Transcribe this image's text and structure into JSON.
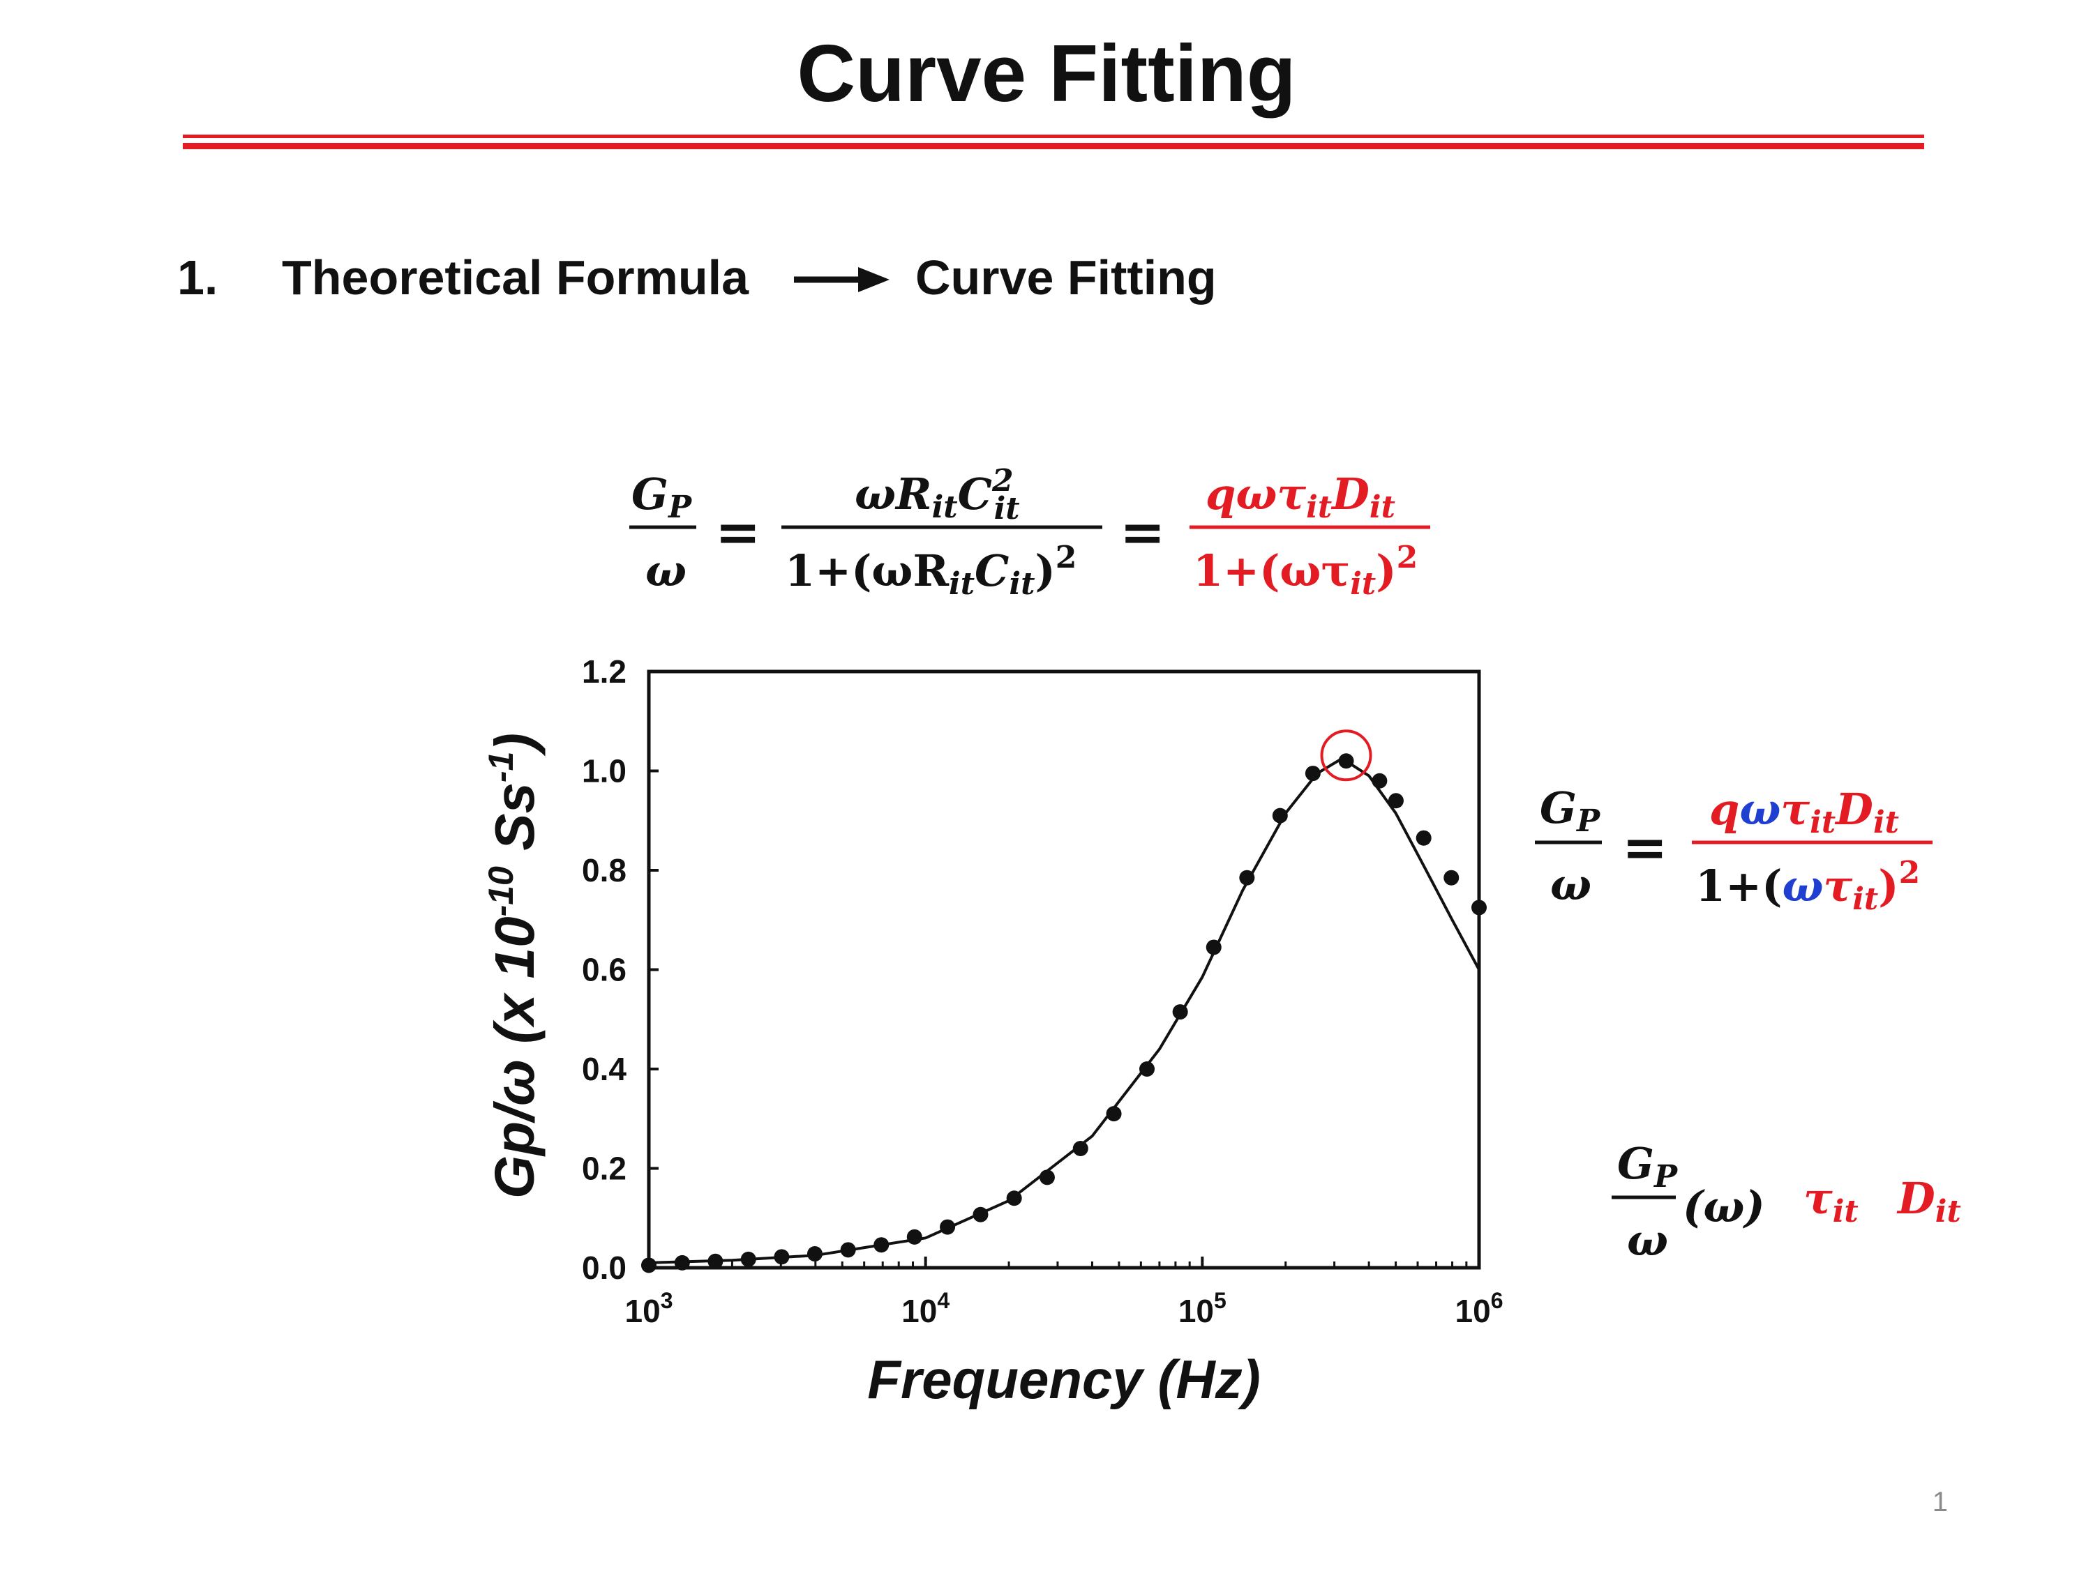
{
  "title": "Curve Fitting",
  "heading": {
    "number": "1.",
    "left": "Theoretical Formula",
    "right": "Curve Fitting"
  },
  "page_number": "1",
  "colors": {
    "accent": "#e31b23",
    "omega_highlight": "#1f3fd1",
    "text": "#111111"
  },
  "chart_data": {
    "type": "scatter",
    "xlabel": "Frequency (Hz)",
    "ylabel": "Gp/ω (x 10-10 Ss-1)",
    "xscale": "log",
    "xlim": [
      1000,
      1000000
    ],
    "ylim": [
      0,
      1.2
    ],
    "x_ticks": [
      "10^3",
      "10^4",
      "10^5",
      "10^6"
    ],
    "y_ticks": [
      "0.0",
      "0.2",
      "0.4",
      "0.6",
      "0.8",
      "1.0",
      "1.2"
    ],
    "grid": false,
    "series": [
      {
        "kind": "scatter",
        "x": [
          1000,
          1320,
          1740,
          2290,
          3020,
          3980,
          5250,
          6920,
          9120,
          12000,
          15800,
          20900,
          27500,
          36300,
          47900,
          63100,
          83200,
          110000,
          145000,
          191000,
          251000,
          331000,
          437000,
          501000,
          631000,
          794000,
          1000000
        ],
        "y": [
          0.005,
          0.01,
          0.013,
          0.017,
          0.022,
          0.028,
          0.036,
          0.046,
          0.062,
          0.082,
          0.107,
          0.14,
          0.182,
          0.24,
          0.31,
          0.4,
          0.515,
          0.645,
          0.785,
          0.91,
          0.995,
          1.02,
          0.98,
          0.94,
          0.865,
          0.785,
          0.725
        ]
      },
      {
        "kind": "line",
        "x": [
          1000,
          2000,
          4000,
          10000,
          20000,
          40000,
          70000,
          100000,
          140000,
          200000,
          260000,
          320000,
          400000,
          500000,
          630000,
          800000,
          1000000
        ],
        "y": [
          0.01,
          0.015,
          0.025,
          0.06,
          0.135,
          0.265,
          0.44,
          0.585,
          0.76,
          0.915,
          0.995,
          1.025,
          0.99,
          0.915,
          0.81,
          0.7,
          0.6
        ]
      }
    ],
    "highlight_point": {
      "x": 331000,
      "y": 1.02
    }
  },
  "formulas": {
    "main": {
      "lhs_num": "G",
      "lhs_num_sub": "P",
      "lhs_den": "ω",
      "eq": "=",
      "mid_num_a": "ωR",
      "mid_num_sub_a": "it",
      "mid_num_b": "C",
      "mid_num_sup_b": "2",
      "mid_num_sub_b": "it",
      "mid_den_a": "1+(ωR",
      "mid_den_sub_a": "it",
      "mid_den_b": "C",
      "mid_den_sub_b": "it",
      "mid_den_c": ")",
      "mid_den_sup": "2",
      "rhs_num_a": "qωτ",
      "rhs_num_sub_a": "it",
      "rhs_num_b": "D",
      "rhs_num_sub_b": "it",
      "rhs_den_a": "1+(ωτ",
      "rhs_den_sub": "it",
      "rhs_den_b": ")",
      "rhs_den_sup": "2"
    },
    "side": {
      "lhs_num": "G",
      "lhs_num_sub": "P",
      "lhs_den": "ω",
      "eq": "=",
      "num_q": "q",
      "num_omega": "ω",
      "num_tau": "τ",
      "num_sub_a": "it",
      "num_d": "D",
      "num_sub_b": "it",
      "den_a": "1+(",
      "den_omega": "ω",
      "den_tau": "τ",
      "den_sub": "it",
      "den_b": ")",
      "den_sup": "2"
    },
    "params": {
      "g": "G",
      "g_sub": "P",
      "den": "ω",
      "arg": "(ω)",
      "tau": "τ",
      "tau_sub": "it",
      "d": "D",
      "d_sub": "it"
    }
  }
}
